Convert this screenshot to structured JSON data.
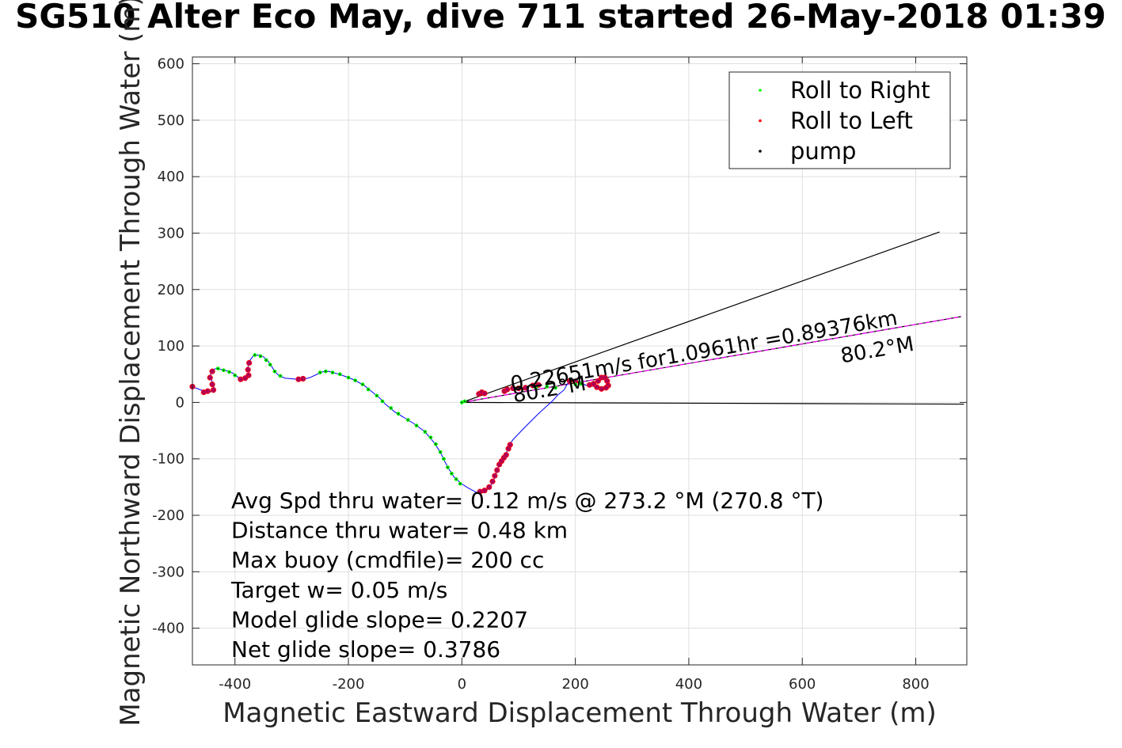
{
  "title": "SG510 Alter Eco May, dive 711 started 26-May-2018 01:39",
  "chart_data": {
    "type": "scatter",
    "title": "SG510 Alter Eco May, dive 711 started 26-May-2018 01:39",
    "xlabel": "Magnetic Eastward Displacement Through Water (m)",
    "ylabel": "Magnetic Northward Displacement Through Water (m)",
    "xlim": [
      -475,
      890
    ],
    "ylim": [
      -465,
      612
    ],
    "xticks": [
      -400,
      -200,
      0,
      200,
      400,
      600,
      800
    ],
    "yticks": [
      600,
      500,
      400,
      300,
      200,
      100,
      0,
      -100,
      -200,
      -300,
      -400
    ],
    "grid": true,
    "legend_position": "top-right",
    "legend": [
      {
        "label": "Roll to Right",
        "color": "#00ff00"
      },
      {
        "label": "Roll to Left",
        "color": "#ff0000"
      },
      {
        "label": "pump",
        "color": "#000000"
      }
    ],
    "series": [
      {
        "role": "track",
        "color": "#0000ff",
        "points": [
          [
            -475,
            28
          ],
          [
            -460,
            22
          ],
          [
            -445,
            18
          ],
          [
            -435,
            22
          ],
          [
            -440,
            35
          ],
          [
            -443,
            50
          ],
          [
            -440,
            58
          ],
          [
            -433,
            60
          ],
          [
            -418,
            57
          ],
          [
            -404,
            52
          ],
          [
            -395,
            45
          ],
          [
            -388,
            40
          ],
          [
            -380,
            42
          ],
          [
            -374,
            48
          ],
          [
            -378,
            60
          ],
          [
            -374,
            74
          ],
          [
            -368,
            82
          ],
          [
            -360,
            84
          ],
          [
            -350,
            81
          ],
          [
            -343,
            75
          ],
          [
            -336,
            65
          ],
          [
            -330,
            55
          ],
          [
            -323,
            48
          ],
          [
            -312,
            43
          ],
          [
            -290,
            41
          ],
          [
            -282,
            40
          ],
          [
            -268,
            44
          ],
          [
            -255,
            50
          ],
          [
            -248,
            54
          ],
          [
            -235,
            55
          ],
          [
            -220,
            51
          ],
          [
            -205,
            46
          ],
          [
            -190,
            40
          ],
          [
            -172,
            30
          ],
          [
            -160,
            20
          ],
          [
            -145,
            8
          ],
          [
            -135,
            -3
          ],
          [
            -118,
            -17
          ],
          [
            -100,
            -28
          ],
          [
            -84,
            -38
          ],
          [
            -65,
            -52
          ],
          [
            -50,
            -70
          ],
          [
            -38,
            -88
          ],
          [
            -30,
            -105
          ],
          [
            -23,
            -118
          ],
          [
            -14,
            -132
          ],
          [
            -2,
            -143
          ],
          [
            10,
            -151
          ],
          [
            25,
            -159
          ],
          [
            38,
            -160
          ],
          [
            50,
            -150
          ],
          [
            57,
            -135
          ],
          [
            62,
            -120
          ],
          [
            68,
            -105
          ],
          [
            76,
            -95
          ],
          [
            84,
            -75
          ],
          [
            90,
            -66
          ],
          [
            110,
            -45
          ],
          [
            135,
            -20
          ],
          [
            160,
            3
          ],
          [
            170,
            14
          ],
          [
            180,
            22
          ],
          [
            186,
            33
          ],
          [
            194,
            38
          ],
          [
            206,
            36
          ],
          [
            220,
            30
          ],
          [
            230,
            33
          ],
          [
            240,
            40
          ],
          [
            248,
            45
          ],
          [
            255,
            38
          ],
          [
            258,
            30
          ],
          [
            250,
            24
          ],
          [
            238,
            26
          ],
          [
            222,
            32
          ]
        ]
      },
      {
        "role": "roll-right",
        "color": "#00ff00",
        "points": [
          [
            -430,
            60
          ],
          [
            -420,
            57
          ],
          [
            -410,
            54
          ],
          [
            -400,
            48
          ],
          [
            -365,
            84
          ],
          [
            -355,
            82
          ],
          [
            -345,
            75
          ],
          [
            -338,
            67
          ],
          [
            -330,
            55
          ],
          [
            -320,
            47
          ],
          [
            -250,
            53
          ],
          [
            -240,
            55
          ],
          [
            -228,
            53
          ],
          [
            -215,
            50
          ],
          [
            -200,
            44
          ],
          [
            -188,
            39
          ],
          [
            -175,
            32
          ],
          [
            -165,
            23
          ],
          [
            -150,
            12
          ],
          [
            -140,
            2
          ],
          [
            -125,
            -10
          ],
          [
            -112,
            -20
          ],
          [
            -95,
            -31
          ],
          [
            -80,
            -41
          ],
          [
            -65,
            -52
          ],
          [
            -55,
            -62
          ],
          [
            -46,
            -74
          ],
          [
            -38,
            -88
          ],
          [
            -32,
            -100
          ],
          [
            -25,
            -115
          ],
          [
            -18,
            -126
          ],
          [
            -10,
            -136
          ],
          [
            -3,
            -144
          ],
          [
            0,
            0
          ],
          [
            5,
            2
          ],
          [
            130,
            26
          ],
          [
            150,
            28
          ],
          [
            165,
            26
          ],
          [
            200,
            32
          ],
          [
            210,
            33
          ]
        ]
      },
      {
        "role": "roll-left",
        "color": "#ff0000",
        "points": [
          [
            -475,
            28
          ],
          [
            -455,
            18
          ],
          [
            -448,
            20
          ],
          [
            -438,
            22
          ],
          [
            -440,
            32
          ],
          [
            -444,
            44
          ],
          [
            -440,
            55
          ],
          [
            -390,
            41
          ],
          [
            -382,
            43
          ],
          [
            -376,
            48
          ],
          [
            -377,
            58
          ],
          [
            -375,
            70
          ],
          [
            -288,
            41
          ],
          [
            -280,
            42
          ],
          [
            32,
            -158
          ],
          [
            40,
            -156
          ],
          [
            48,
            -150
          ],
          [
            54,
            -140
          ],
          [
            58,
            -130
          ],
          [
            62,
            -120
          ],
          [
            66,
            -110
          ],
          [
            70,
            -104
          ],
          [
            74,
            -98
          ],
          [
            78,
            -93
          ],
          [
            82,
            -82
          ],
          [
            85,
            -75
          ],
          [
            30,
            15
          ],
          [
            35,
            18
          ],
          [
            40,
            16
          ],
          [
            75,
            20
          ],
          [
            80,
            23
          ],
          [
            90,
            25
          ],
          [
            100,
            25
          ],
          [
            112,
            26
          ],
          [
            125,
            30
          ],
          [
            135,
            31
          ],
          [
            190,
            38
          ],
          [
            200,
            37
          ],
          [
            225,
            31
          ],
          [
            232,
            33
          ],
          [
            240,
            38
          ],
          [
            246,
            44
          ],
          [
            252,
            44
          ],
          [
            256,
            38
          ],
          [
            258,
            30
          ],
          [
            254,
            26
          ],
          [
            246,
            24
          ],
          [
            238,
            27
          ]
        ]
      },
      {
        "role": "bearing-lines",
        "color": "#000000",
        "lines": [
          [
            [
              0,
              0
            ],
            [
              842,
              302
            ]
          ],
          [
            [
              0,
              0
            ],
            [
              885,
              -3
            ]
          ],
          [
            [
              0,
              0
            ],
            [
              880,
              152
            ]
          ]
        ]
      },
      {
        "role": "net-track",
        "color": "#ff00ff",
        "points": [
          [
            0,
            0
          ],
          [
            880,
            152
          ]
        ]
      }
    ],
    "annotations": [
      {
        "text": "0.22651m/s for1.0961hr =0.89376km",
        "x": 88,
        "y": 20,
        "rotation": -9.8
      },
      {
        "text": "80.2°M",
        "x": 92,
        "y": 0,
        "rotation": -9.8
      },
      {
        "text": "80.2°M",
        "x": 670,
        "y": 70,
        "rotation": -9.8
      }
    ],
    "stats": [
      "Avg Spd thru water=  0.12 m/s @ 273.2 °M (270.8 °T)",
      "Distance thru water=  0.48 km",
      "Max buoy (cmdfile)= 200 cc",
      "Target w= 0.05 m/s",
      "Model glide slope= 0.2207",
      "Net glide slope= 0.3786"
    ]
  }
}
